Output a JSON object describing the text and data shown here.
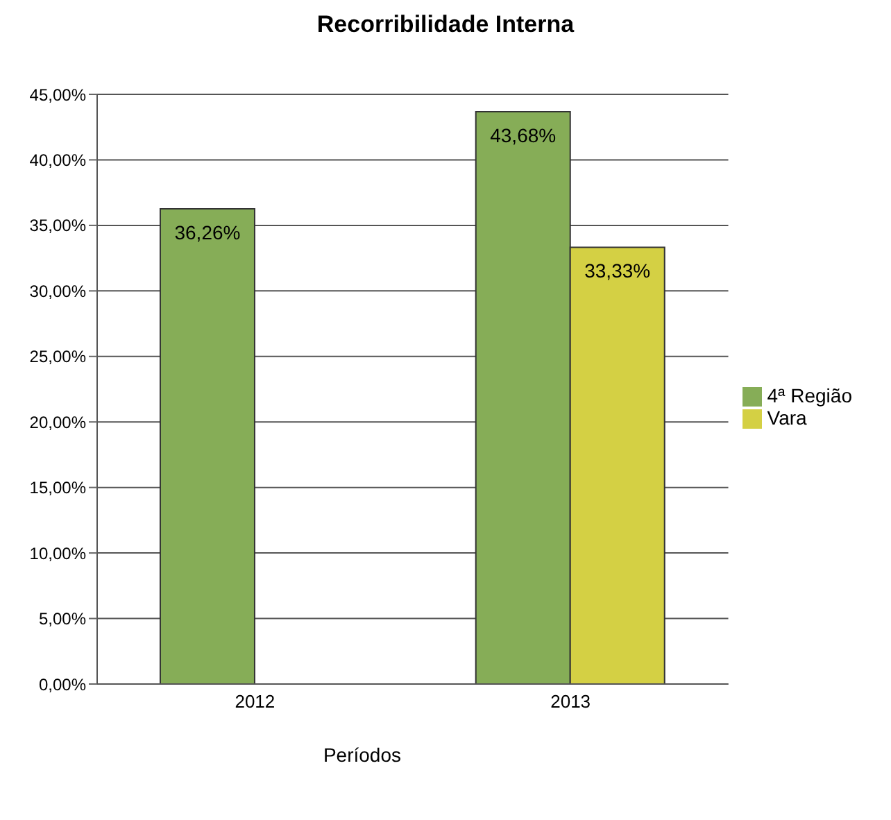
{
  "chart_data": {
    "type": "bar",
    "title": "Recorribilidade Interna",
    "xlabel": "Períodos",
    "categories": [
      "2012",
      "2013"
    ],
    "series": [
      {
        "name": "4ª Região",
        "color": "#86ad57",
        "values": [
          36.26,
          43.68
        ],
        "value_labels": [
          "36,26%",
          "43,68%"
        ]
      },
      {
        "name": "Vara",
        "color": "#d4d044",
        "values": [
          null,
          33.33
        ],
        "value_labels": [
          null,
          "33,33%"
        ]
      }
    ],
    "ylim": [
      0,
      45
    ],
    "yticks": [
      {
        "value": 0,
        "label": "0,00%"
      },
      {
        "value": 5,
        "label": "5,00%"
      },
      {
        "value": 10,
        "label": "10,00%"
      },
      {
        "value": 15,
        "label": "15,00%"
      },
      {
        "value": 20,
        "label": "20,00%"
      },
      {
        "value": 25,
        "label": "25,00%"
      },
      {
        "value": 30,
        "label": "30,00%"
      },
      {
        "value": 35,
        "label": "35,00%"
      },
      {
        "value": 40,
        "label": "40,00%"
      },
      {
        "value": 45,
        "label": "45,00%"
      }
    ],
    "grid": "y",
    "legend": "right"
  }
}
